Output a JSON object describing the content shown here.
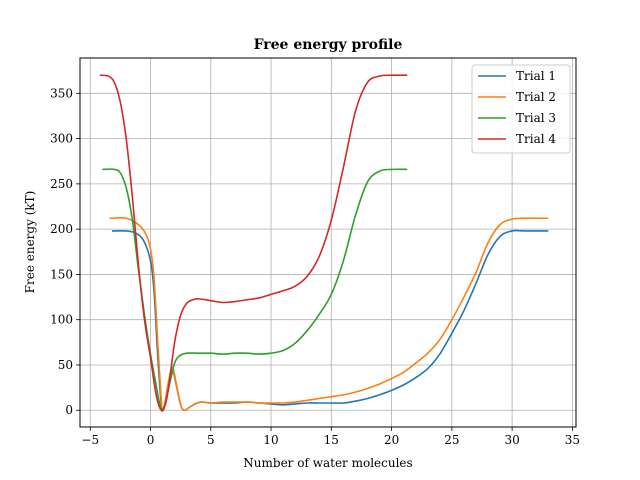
{
  "chart_data": {
    "type": "line",
    "title": "Free energy profile",
    "xlabel": "Number of water molecules",
    "ylabel": "Free energy (kT)",
    "xlim": [
      -5.85,
      35.3
    ],
    "ylim": [
      -18.5,
      389
    ],
    "xticks": [
      -5,
      0,
      5,
      10,
      15,
      20,
      25,
      30,
      35
    ],
    "yticks": [
      0,
      50,
      100,
      150,
      200,
      250,
      300,
      350
    ],
    "grid": true,
    "legend_position": "top-right",
    "series": [
      {
        "name": "Trial 1",
        "color": "#1f77b4",
        "points": [
          [
            -3.2,
            198
          ],
          [
            -2.0,
            198
          ],
          [
            -1.3,
            196
          ],
          [
            -0.6,
            188
          ],
          [
            0,
            165
          ],
          [
            0.3,
            130
          ],
          [
            0.6,
            60
          ],
          [
            0.9,
            5
          ],
          [
            1.0,
            0
          ],
          [
            1.15,
            4
          ],
          [
            1.5,
            30
          ],
          [
            1.8,
            45
          ],
          [
            2.1,
            30
          ],
          [
            2.5,
            6
          ],
          [
            2.8,
            0
          ],
          [
            3.2,
            3
          ],
          [
            3.7,
            7
          ],
          [
            4.2,
            9
          ],
          [
            5.0,
            8
          ],
          [
            6.0,
            8
          ],
          [
            7.0,
            8
          ],
          [
            8.0,
            9
          ],
          [
            9.0,
            8
          ],
          [
            10.0,
            7
          ],
          [
            11.0,
            6
          ],
          [
            12.0,
            7
          ],
          [
            13.0,
            8
          ],
          [
            14.0,
            8
          ],
          [
            15.0,
            8
          ],
          [
            16.0,
            8
          ],
          [
            17.0,
            10
          ],
          [
            18.0,
            13
          ],
          [
            19.0,
            17
          ],
          [
            20.0,
            22
          ],
          [
            21.0,
            28
          ],
          [
            22.0,
            36
          ],
          [
            23.0,
            46
          ],
          [
            24.0,
            62
          ],
          [
            25.0,
            85
          ],
          [
            26.0,
            110
          ],
          [
            27.0,
            140
          ],
          [
            28.0,
            172
          ],
          [
            29.0,
            192
          ],
          [
            30.0,
            198
          ],
          [
            31.0,
            198
          ],
          [
            33.0,
            198
          ]
        ]
      },
      {
        "name": "Trial 2",
        "color": "#ff7f0e",
        "points": [
          [
            -3.4,
            212
          ],
          [
            -2.0,
            212
          ],
          [
            -1.0,
            205
          ],
          [
            -0.4,
            195
          ],
          [
            0,
            178
          ],
          [
            0.3,
            145
          ],
          [
            0.6,
            75
          ],
          [
            0.9,
            10
          ],
          [
            1.0,
            0
          ],
          [
            1.15,
            5
          ],
          [
            1.5,
            32
          ],
          [
            1.8,
            48
          ],
          [
            2.1,
            32
          ],
          [
            2.5,
            6
          ],
          [
            2.8,
            0
          ],
          [
            3.2,
            3
          ],
          [
            3.7,
            7
          ],
          [
            4.2,
            9
          ],
          [
            5.0,
            8
          ],
          [
            6.0,
            9
          ],
          [
            7.0,
            9
          ],
          [
            8.0,
            9
          ],
          [
            9.0,
            8
          ],
          [
            10.0,
            8
          ],
          [
            11.0,
            8
          ],
          [
            12.0,
            9
          ],
          [
            13.0,
            11
          ],
          [
            14.0,
            13
          ],
          [
            15.0,
            15
          ],
          [
            16.0,
            17
          ],
          [
            17.0,
            20
          ],
          [
            18.0,
            24
          ],
          [
            19.0,
            29
          ],
          [
            20.0,
            35
          ],
          [
            21.0,
            42
          ],
          [
            22.0,
            52
          ],
          [
            23.0,
            63
          ],
          [
            24.0,
            78
          ],
          [
            25.0,
            100
          ],
          [
            26.0,
            125
          ],
          [
            27.0,
            152
          ],
          [
            28.0,
            185
          ],
          [
            29.0,
            205
          ],
          [
            30.0,
            211
          ],
          [
            31.0,
            212
          ],
          [
            33.0,
            212
          ]
        ]
      },
      {
        "name": "Trial 3",
        "color": "#2ca02c",
        "points": [
          [
            -4.0,
            266
          ],
          [
            -3.0,
            266
          ],
          [
            -2.5,
            262
          ],
          [
            -2.0,
            245
          ],
          [
            -1.5,
            210
          ],
          [
            -1.0,
            155
          ],
          [
            -0.5,
            105
          ],
          [
            0,
            62
          ],
          [
            0.5,
            25
          ],
          [
            0.8,
            5
          ],
          [
            1.0,
            0
          ],
          [
            1.3,
            12
          ],
          [
            1.6,
            30
          ],
          [
            2.0,
            52
          ],
          [
            2.4,
            60
          ],
          [
            3.0,
            63
          ],
          [
            4.0,
            63
          ],
          [
            5.0,
            63
          ],
          [
            6.0,
            62
          ],
          [
            7.0,
            63
          ],
          [
            8.0,
            63
          ],
          [
            9.0,
            62
          ],
          [
            10.0,
            63
          ],
          [
            11.0,
            66
          ],
          [
            12.0,
            74
          ],
          [
            13.0,
            88
          ],
          [
            14.0,
            106
          ],
          [
            15.0,
            128
          ],
          [
            16.0,
            165
          ],
          [
            17.0,
            215
          ],
          [
            18.0,
            252
          ],
          [
            19.0,
            264
          ],
          [
            20.0,
            266
          ],
          [
            21.3,
            266
          ]
        ]
      },
      {
        "name": "Trial 4",
        "color": "#d62728",
        "points": [
          [
            -4.2,
            370
          ],
          [
            -3.5,
            369
          ],
          [
            -3.0,
            362
          ],
          [
            -2.5,
            340
          ],
          [
            -2.0,
            298
          ],
          [
            -1.5,
            235
          ],
          [
            -1.0,
            160
          ],
          [
            -0.5,
            100
          ],
          [
            0,
            58
          ],
          [
            0.4,
            22
          ],
          [
            0.7,
            5
          ],
          [
            1.0,
            0
          ],
          [
            1.3,
            10
          ],
          [
            1.6,
            35
          ],
          [
            2.0,
            75
          ],
          [
            2.5,
            105
          ],
          [
            3.0,
            118
          ],
          [
            3.5,
            122
          ],
          [
            4.0,
            123
          ],
          [
            5.0,
            121
          ],
          [
            6.0,
            119
          ],
          [
            7.0,
            120
          ],
          [
            8.0,
            122
          ],
          [
            9.0,
            124
          ],
          [
            10.0,
            128
          ],
          [
            11.0,
            132
          ],
          [
            12.0,
            137
          ],
          [
            13.0,
            148
          ],
          [
            14.0,
            170
          ],
          [
            15.0,
            210
          ],
          [
            16.0,
            268
          ],
          [
            17.0,
            330
          ],
          [
            18.0,
            362
          ],
          [
            19.0,
            369
          ],
          [
            20.0,
            370
          ],
          [
            21.3,
            370
          ]
        ]
      }
    ]
  }
}
